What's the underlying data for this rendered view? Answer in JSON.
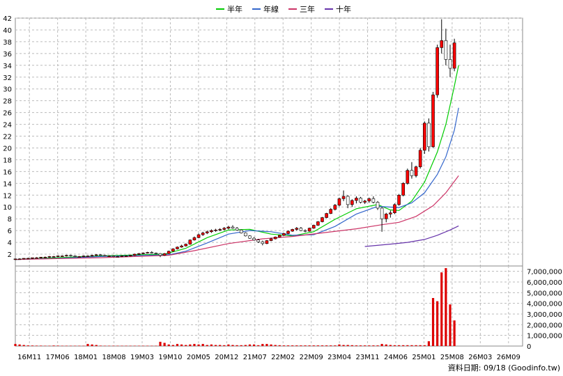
{
  "legend": [
    {
      "name": "半年",
      "color": "#00cc00"
    },
    {
      "name": "年線",
      "color": "#3366cc"
    },
    {
      "name": "三年",
      "color": "#cc3366"
    },
    {
      "name": "十年",
      "color": "#6633aa"
    }
  ],
  "footer": {
    "credit": "資料日期: 09/18 (Goodinfo.tw)"
  },
  "colors": {
    "up_candle": "#ff0000",
    "down_candle": "#00aa00",
    "volume": "#dd0000",
    "grid": "#bbbbbb",
    "background": "#ffffff"
  },
  "chart_data": {
    "type": "candlestick",
    "price_axis": {
      "ylim": [
        0,
        42
      ],
      "ticks": [
        2,
        4,
        6,
        8,
        10,
        12,
        14,
        16,
        18,
        20,
        22,
        24,
        26,
        28,
        30,
        32,
        34,
        36,
        38,
        40,
        42
      ]
    },
    "volume_axis": {
      "ylim": [
        0,
        7500000
      ],
      "ticks": [
        "0",
        "1,000,000",
        "2,000,000",
        "3,000,000",
        "4,000,000",
        "5,000,000",
        "6,000,000",
        "7,000,000"
      ],
      "tick_values": [
        0,
        1000000,
        2000000,
        3000000,
        4000000,
        5000000,
        6000000,
        7000000
      ]
    },
    "x_tick_labels": [
      "16M11",
      "17M06",
      "18M01",
      "18M08",
      "19M03",
      "19M10",
      "20M05",
      "20M12",
      "21M07",
      "22M02",
      "22M09",
      "23M04",
      "23M11",
      "24M06",
      "25M01",
      "25M08",
      "26M03",
      "26M09"
    ],
    "x_range": [
      0,
      119
    ],
    "candles": [
      [
        1.1,
        1.2,
        1.0,
        1.2
      ],
      [
        1.2,
        1.3,
        1.1,
        1.2
      ],
      [
        1.2,
        1.3,
        1.1,
        1.3
      ],
      [
        1.3,
        1.4,
        1.2,
        1.3
      ],
      [
        1.3,
        1.4,
        1.2,
        1.4
      ],
      [
        1.4,
        1.5,
        1.3,
        1.4
      ],
      [
        1.4,
        1.5,
        1.3,
        1.5
      ],
      [
        1.5,
        1.6,
        1.4,
        1.5
      ],
      [
        1.5,
        1.7,
        1.4,
        1.6
      ],
      [
        1.6,
        1.7,
        1.5,
        1.6
      ],
      [
        1.6,
        1.8,
        1.5,
        1.7
      ],
      [
        1.7,
        1.8,
        1.6,
        1.7
      ],
      [
        1.7,
        1.9,
        1.6,
        1.8
      ],
      [
        1.8,
        1.9,
        1.6,
        1.7
      ],
      [
        1.7,
        1.8,
        1.5,
        1.6
      ],
      [
        1.6,
        1.7,
        1.5,
        1.6
      ],
      [
        1.6,
        1.8,
        1.5,
        1.7
      ],
      [
        1.7,
        1.8,
        1.6,
        1.7
      ],
      [
        1.7,
        1.9,
        1.6,
        1.8
      ],
      [
        1.8,
        2.0,
        1.7,
        1.9
      ],
      [
        1.9,
        2.0,
        1.7,
        1.8
      ],
      [
        1.8,
        1.9,
        1.6,
        1.7
      ],
      [
        1.7,
        1.8,
        1.6,
        1.7
      ],
      [
        1.7,
        1.8,
        1.5,
        1.6
      ],
      [
        1.6,
        1.7,
        1.5,
        1.6
      ],
      [
        1.6,
        1.8,
        1.5,
        1.7
      ],
      [
        1.7,
        1.8,
        1.6,
        1.7
      ],
      [
        1.7,
        1.9,
        1.6,
        1.8
      ],
      [
        1.8,
        2.1,
        1.7,
        2.0
      ],
      [
        2.0,
        2.2,
        1.9,
        2.1
      ],
      [
        2.1,
        2.3,
        2.0,
        2.2
      ],
      [
        2.2,
        2.4,
        2.1,
        2.3
      ],
      [
        2.3,
        2.5,
        2.1,
        2.2
      ],
      [
        2.2,
        2.3,
        2.0,
        2.1
      ],
      [
        2.1,
        2.2,
        1.5,
        1.8
      ],
      [
        1.8,
        2.2,
        1.7,
        2.1
      ],
      [
        2.1,
        2.6,
        2.0,
        2.5
      ],
      [
        2.5,
        3.0,
        2.4,
        2.9
      ],
      [
        2.9,
        3.3,
        2.8,
        3.2
      ],
      [
        3.2,
        3.6,
        3.1,
        3.4
      ],
      [
        3.4,
        3.8,
        3.3,
        3.7
      ],
      [
        3.7,
        4.5,
        3.6,
        4.4
      ],
      [
        4.4,
        5.0,
        4.3,
        4.8
      ],
      [
        4.8,
        5.5,
        4.7,
        5.3
      ],
      [
        5.3,
        5.8,
        5.1,
        5.6
      ],
      [
        5.6,
        6.0,
        5.4,
        5.8
      ],
      [
        5.8,
        6.2,
        5.6,
        6.0
      ],
      [
        6.0,
        6.3,
        5.8,
        6.1
      ],
      [
        6.1,
        6.4,
        5.9,
        6.2
      ],
      [
        6.2,
        6.6,
        6.0,
        6.4
      ],
      [
        6.4,
        6.8,
        6.2,
        6.6
      ],
      [
        6.6,
        6.9,
        6.3,
        6.4
      ],
      [
        6.4,
        6.6,
        6.0,
        6.1
      ],
      [
        6.1,
        6.2,
        5.5,
        5.6
      ],
      [
        5.6,
        5.7,
        5.0,
        5.1
      ],
      [
        5.1,
        5.2,
        4.6,
        4.7
      ],
      [
        4.7,
        4.9,
        4.3,
        4.4
      ],
      [
        4.4,
        4.6,
        3.9,
        4.1
      ],
      [
        4.1,
        4.3,
        3.5,
        3.8
      ],
      [
        3.8,
        4.4,
        3.7,
        4.3
      ],
      [
        4.3,
        4.8,
        4.2,
        4.6
      ],
      [
        4.6,
        5.0,
        4.5,
        4.9
      ],
      [
        4.9,
        5.3,
        4.8,
        5.2
      ],
      [
        5.2,
        5.6,
        5.1,
        5.5
      ],
      [
        5.5,
        6.0,
        5.4,
        5.9
      ],
      [
        5.9,
        6.3,
        5.8,
        6.2
      ],
      [
        6.2,
        6.6,
        6.0,
        6.4
      ],
      [
        6.4,
        6.6,
        5.9,
        6.0
      ],
      [
        6.0,
        6.2,
        5.7,
        5.9
      ],
      [
        5.9,
        6.5,
        5.8,
        6.4
      ],
      [
        6.4,
        7.0,
        6.3,
        6.9
      ],
      [
        6.9,
        7.6,
        6.8,
        7.5
      ],
      [
        7.5,
        8.3,
        7.4,
        8.2
      ],
      [
        8.2,
        9.0,
        8.1,
        8.9
      ],
      [
        8.9,
        9.8,
        8.8,
        9.6
      ],
      [
        9.6,
        10.5,
        9.4,
        10.3
      ],
      [
        10.3,
        11.6,
        10.1,
        11.4
      ],
      [
        11.4,
        12.8,
        11.0,
        11.8
      ],
      [
        11.8,
        12.0,
        9.8,
        10.4
      ],
      [
        10.4,
        11.3,
        10.0,
        11.1
      ],
      [
        11.1,
        11.8,
        10.6,
        11.5
      ],
      [
        11.5,
        11.7,
        10.6,
        10.8
      ],
      [
        10.8,
        11.2,
        10.5,
        11.0
      ],
      [
        11.0,
        11.6,
        10.7,
        11.4
      ],
      [
        11.4,
        11.8,
        10.6,
        10.8
      ],
      [
        10.8,
        11.0,
        9.5,
        9.8
      ],
      [
        9.8,
        10.0,
        5.8,
        8.0
      ],
      [
        8.0,
        9.0,
        7.4,
        8.8
      ],
      [
        8.8,
        9.4,
        8.2,
        9.0
      ],
      [
        9.0,
        10.6,
        8.8,
        10.4
      ],
      [
        10.4,
        12.2,
        10.2,
        12.0
      ],
      [
        12.0,
        14.2,
        11.8,
        14.0
      ],
      [
        14.0,
        16.5,
        13.8,
        16.2
      ],
      [
        16.2,
        17.6,
        14.8,
        15.3
      ],
      [
        15.3,
        17.0,
        15.0,
        16.8
      ],
      [
        16.8,
        20.0,
        16.5,
        19.6
      ],
      [
        19.6,
        24.5,
        19.0,
        24.2
      ],
      [
        24.2,
        25.0,
        19.4,
        20.2
      ],
      [
        20.2,
        29.5,
        20.0,
        29.0
      ],
      [
        29.0,
        37.5,
        28.5,
        37.0
      ],
      [
        37.0,
        41.8,
        36.0,
        38.2
      ],
      [
        38.2,
        40.2,
        34.0,
        35.0
      ],
      [
        35.0,
        37.5,
        32.0,
        33.5
      ],
      [
        33.5,
        38.5,
        33.0,
        37.8
      ]
    ],
    "series": [
      {
        "name": "半年",
        "color": "#00cc00",
        "points": [
          [
            0,
            1.1
          ],
          [
            10,
            1.4
          ],
          [
            20,
            1.7
          ],
          [
            30,
            1.9
          ],
          [
            35,
            2.0
          ],
          [
            40,
            3.0
          ],
          [
            45,
            4.8
          ],
          [
            50,
            6.1
          ],
          [
            55,
            6.2
          ],
          [
            60,
            5.4
          ],
          [
            65,
            5.1
          ],
          [
            70,
            5.8
          ],
          [
            75,
            7.9
          ],
          [
            80,
            9.7
          ],
          [
            85,
            10.4
          ],
          [
            88,
            9.5
          ],
          [
            90,
            9.4
          ],
          [
            93,
            11.0
          ],
          [
            96,
            14.2
          ],
          [
            99,
            19.3
          ],
          [
            101,
            24.0
          ],
          [
            103,
            30.5
          ],
          [
            104,
            34.0
          ]
        ]
      },
      {
        "name": "年線",
        "color": "#3366cc",
        "points": [
          [
            0,
            1.1
          ],
          [
            10,
            1.3
          ],
          [
            20,
            1.6
          ],
          [
            30,
            1.8
          ],
          [
            36,
            1.9
          ],
          [
            40,
            2.5
          ],
          [
            45,
            3.9
          ],
          [
            50,
            5.4
          ],
          [
            55,
            6.0
          ],
          [
            60,
            5.8
          ],
          [
            65,
            5.2
          ],
          [
            70,
            5.3
          ],
          [
            75,
            6.7
          ],
          [
            80,
            8.8
          ],
          [
            85,
            10.1
          ],
          [
            90,
            9.9
          ],
          [
            93,
            10.7
          ],
          [
            96,
            12.4
          ],
          [
            99,
            15.5
          ],
          [
            101,
            18.5
          ],
          [
            103,
            23.0
          ],
          [
            104,
            26.8
          ]
        ]
      },
      {
        "name": "三年",
        "color": "#cc3366",
        "points": [
          [
            0,
            1.1
          ],
          [
            20,
            1.4
          ],
          [
            36,
            1.8
          ],
          [
            42,
            2.6
          ],
          [
            50,
            3.8
          ],
          [
            58,
            4.6
          ],
          [
            65,
            5.0
          ],
          [
            72,
            5.6
          ],
          [
            80,
            6.3
          ],
          [
            86,
            7.0
          ],
          [
            90,
            7.4
          ],
          [
            94,
            8.4
          ],
          [
            98,
            10.2
          ],
          [
            101,
            12.4
          ],
          [
            104,
            15.3
          ]
        ]
      },
      {
        "name": "十年",
        "color": "#6633aa",
        "points": [
          [
            82,
            3.3
          ],
          [
            88,
            3.7
          ],
          [
            92,
            4.0
          ],
          [
            96,
            4.5
          ],
          [
            99,
            5.2
          ],
          [
            102,
            6.1
          ],
          [
            104,
            6.8
          ]
        ]
      }
    ],
    "volumes": [
      200000,
      150000,
      100000,
      60000,
      50000,
      40000,
      40000,
      30000,
      30000,
      50000,
      40000,
      30000,
      30000,
      30000,
      30000,
      30000,
      30000,
      200000,
      150000,
      100000,
      40000,
      30000,
      30000,
      30000,
      30000,
      30000,
      30000,
      30000,
      30000,
      30000,
      30000,
      30000,
      30000,
      30000,
      400000,
      300000,
      150000,
      100000,
      200000,
      150000,
      100000,
      150000,
      200000,
      150000,
      200000,
      100000,
      150000,
      100000,
      100000,
      80000,
      150000,
      100000,
      80000,
      80000,
      100000,
      150000,
      150000,
      80000,
      200000,
      200000,
      150000,
      100000,
      80000,
      60000,
      60000,
      60000,
      60000,
      60000,
      60000,
      60000,
      60000,
      60000,
      60000,
      60000,
      60000,
      60000,
      150000,
      100000,
      100000,
      80000,
      60000,
      60000,
      60000,
      60000,
      60000,
      60000,
      200000,
      150000,
      100000,
      80000,
      80000,
      80000,
      80000,
      80000,
      80000,
      80000,
      80000,
      450000,
      4500000,
      4200000,
      6900000,
      7300000,
      3900000,
      2400000
    ]
  }
}
